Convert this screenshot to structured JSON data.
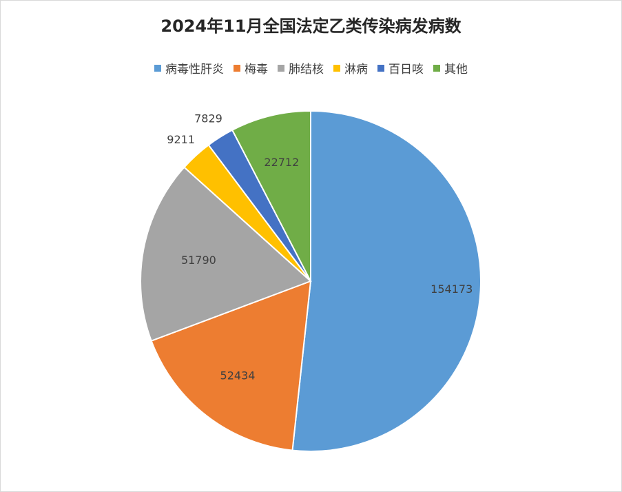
{
  "chart_data": {
    "type": "pie",
    "title": "2024年11月全国法定乙类传染病发病数",
    "legend_position": "top",
    "categories": [
      "病毒性肝炎",
      "梅毒",
      "肺结核",
      "淋病",
      "百日咳",
      "其他"
    ],
    "values": [
      154173,
      52434,
      51790,
      9211,
      7829,
      22712
    ],
    "colors": [
      "#5B9BD5",
      "#ED7D31",
      "#A5A5A5",
      "#FFC000",
      "#4472C4",
      "#70AD47"
    ],
    "data_labels": [
      "154173",
      "52434",
      "51790",
      "9211",
      "7829",
      "22712"
    ]
  }
}
